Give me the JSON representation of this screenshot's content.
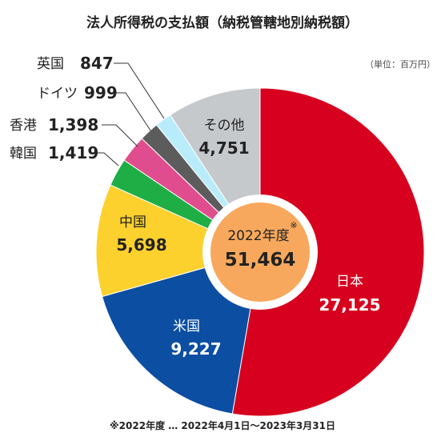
{
  "title": "法人所得税の支払額（納税管轄地別納税額）",
  "unit": "（単位：百万円）",
  "footnote": "※2022年度 … 2022年4月1日～2023年3月31日",
  "center": {
    "label": "2022年度",
    "mark": "※",
    "total": "51,464"
  },
  "colors": {
    "japan": "#d7001e",
    "us": "#0b4ea2",
    "china": "#fcd12d",
    "korea": "#1fae45",
    "hongkong": "#e04d8f",
    "germany": "#5c5c5c",
    "uk": "#b8ecfb",
    "other": "#c6c9cc",
    "center": "#f7a85c"
  },
  "chart_data": {
    "type": "pie",
    "title": "法人所得税の支払額（納税管轄地別納税額）",
    "unit": "百万円",
    "slices": [
      {
        "name": "日本",
        "value": 27125,
        "label": "27,125",
        "color": "#d7001e"
      },
      {
        "name": "米国",
        "value": 9227,
        "label": "9,227",
        "color": "#0b4ea2"
      },
      {
        "name": "中国",
        "value": 5698,
        "label": "5,698",
        "color": "#fcd12d"
      },
      {
        "name": "韓国",
        "value": 1419,
        "label": "1,419",
        "color": "#1fae45"
      },
      {
        "name": "香港",
        "value": 1398,
        "label": "1,398",
        "color": "#e04d8f"
      },
      {
        "name": "ドイツ",
        "value": 999,
        "label": "999",
        "color": "#5c5c5c"
      },
      {
        "name": "英国",
        "value": 847,
        "label": "847",
        "color": "#b8ecfb"
      },
      {
        "name": "その他",
        "value": 4751,
        "label": "4,751",
        "color": "#c6c9cc"
      }
    ],
    "total": 51464
  }
}
